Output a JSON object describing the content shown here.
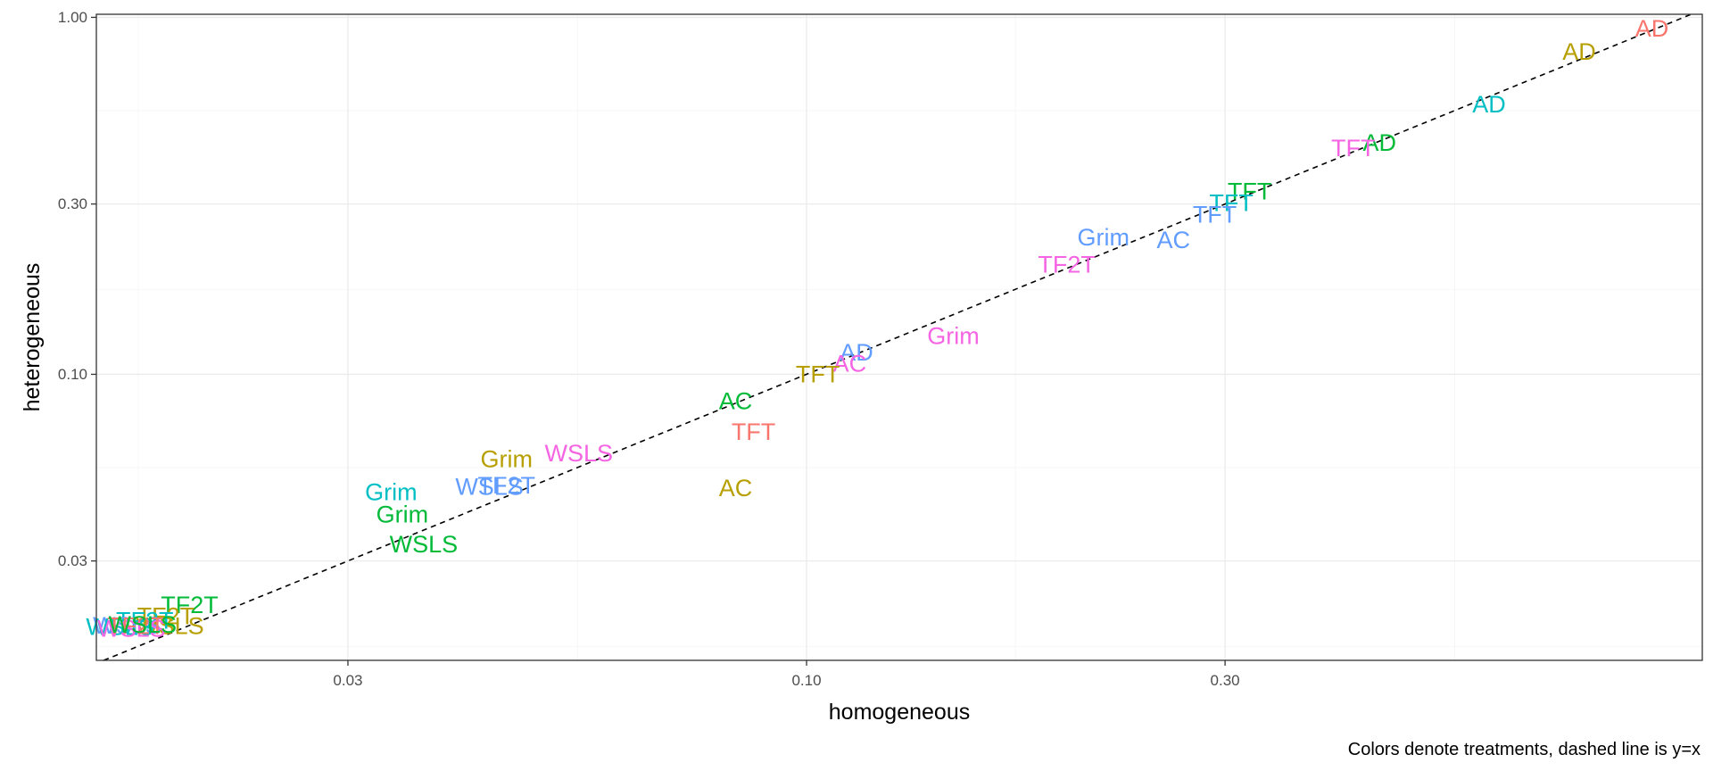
{
  "chart_data": {
    "type": "scatter",
    "title": "",
    "xlabel": "homogeneous",
    "ylabel": "heterogeneous",
    "caption": "Colors denote treatments, dashed line is y=x",
    "x_scale": "log10",
    "y_scale": "log10",
    "xlim": [
      0.0155,
      1.05
    ],
    "ylim": [
      0.0158,
      1.02
    ],
    "x_ticks": [
      0.03,
      0.1,
      0.3
    ],
    "x_tick_labels": [
      "0.03",
      "0.10",
      "0.30"
    ],
    "y_ticks": [
      0.03,
      0.1,
      0.3,
      1.0
    ],
    "y_tick_labels": [
      "0.03",
      "0.10",
      "0.30",
      "1.00"
    ],
    "x_minor_ticks": [
      0.0173,
      0.0548,
      0.173,
      0.548
    ],
    "y_minor_ticks": [
      0.0173,
      0.0548,
      0.173,
      0.548
    ],
    "reference_line": "y = x (dashed)",
    "grid": true,
    "colors": {
      "red": "#F8766D",
      "olive": "#B79F00",
      "green": "#00BA38",
      "teal": "#00BFC4",
      "blue": "#619CFF",
      "magenta": "#F564E3"
    },
    "points": [
      {
        "label": "AD",
        "x": 0.92,
        "y": 0.93,
        "color": "red"
      },
      {
        "label": "AD",
        "x": 0.76,
        "y": 0.8,
        "color": "olive"
      },
      {
        "label": "AD",
        "x": 0.6,
        "y": 0.57,
        "color": "teal"
      },
      {
        "label": "AD",
        "x": 0.45,
        "y": 0.445,
        "color": "green"
      },
      {
        "label": "TFT",
        "x": 0.42,
        "y": 0.43,
        "color": "magenta"
      },
      {
        "label": "TFT",
        "x": 0.32,
        "y": 0.325,
        "color": "green"
      },
      {
        "label": "TFT",
        "x": 0.305,
        "y": 0.302,
        "color": "teal"
      },
      {
        "label": "TFT",
        "x": 0.292,
        "y": 0.28,
        "color": "blue"
      },
      {
        "label": "Grim",
        "x": 0.218,
        "y": 0.242,
        "color": "blue"
      },
      {
        "label": "AC",
        "x": 0.262,
        "y": 0.238,
        "color": "blue"
      },
      {
        "label": "TF2T",
        "x": 0.198,
        "y": 0.203,
        "color": "magenta"
      },
      {
        "label": "Grim",
        "x": 0.147,
        "y": 0.128,
        "color": "magenta"
      },
      {
        "label": "AD",
        "x": 0.114,
        "y": 0.115,
        "color": "blue"
      },
      {
        "label": "AC",
        "x": 0.112,
        "y": 0.107,
        "color": "magenta"
      },
      {
        "label": "TFT",
        "x": 0.103,
        "y": 0.1,
        "color": "olive"
      },
      {
        "label": "AC",
        "x": 0.083,
        "y": 0.084,
        "color": "green"
      },
      {
        "label": "TFT",
        "x": 0.087,
        "y": 0.069,
        "color": "red"
      },
      {
        "label": "WSLS",
        "x": 0.055,
        "y": 0.06,
        "color": "magenta"
      },
      {
        "label": "Grim",
        "x": 0.0455,
        "y": 0.0578,
        "color": "olive"
      },
      {
        "label": "AC",
        "x": 0.083,
        "y": 0.048,
        "color": "olive"
      },
      {
        "label": "WSLS",
        "x": 0.0435,
        "y": 0.0484,
        "color": "blue"
      },
      {
        "label": "TF2T",
        "x": 0.0455,
        "y": 0.0488,
        "color": "blue"
      },
      {
        "label": "Grim",
        "x": 0.0336,
        "y": 0.0468,
        "color": "teal"
      },
      {
        "label": "Grim",
        "x": 0.0346,
        "y": 0.0405,
        "color": "green"
      },
      {
        "label": "WSLS",
        "x": 0.0366,
        "y": 0.0334,
        "color": "green"
      },
      {
        "label": "TF2T",
        "x": 0.0198,
        "y": 0.0226,
        "color": "green"
      },
      {
        "label": "TF2T",
        "x": 0.0186,
        "y": 0.021,
        "color": "olive"
      },
      {
        "label": "WSLS",
        "x": 0.0188,
        "y": 0.0197,
        "color": "olive"
      },
      {
        "label": "TF2T",
        "x": 0.0176,
        "y": 0.0204,
        "color": "teal"
      },
      {
        "label": "WSLS",
        "x": 0.0168,
        "y": 0.0198,
        "color": "blue"
      },
      {
        "label": "WSLS",
        "x": 0.0165,
        "y": 0.0196,
        "color": "teal"
      },
      {
        "label": "WSLS",
        "x": 0.017,
        "y": 0.0194,
        "color": "magenta"
      },
      {
        "label": "TF2T",
        "x": 0.0172,
        "y": 0.0197,
        "color": "red"
      },
      {
        "label": "WSLS",
        "x": 0.0175,
        "y": 0.0199,
        "color": "green"
      }
    ]
  }
}
